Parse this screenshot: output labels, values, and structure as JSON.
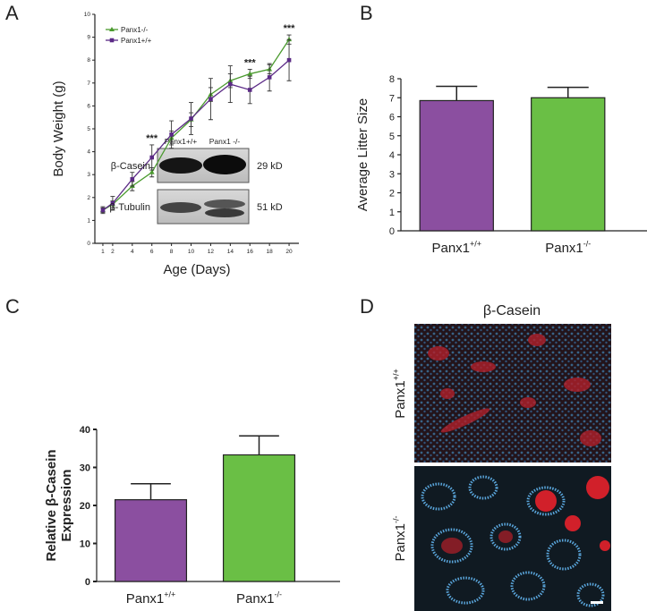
{
  "chart_data": [
    {
      "type": "line",
      "panel": "A",
      "xlabel": "Age (Days)",
      "ylabel": "Body Weight (g)",
      "x": [
        1,
        2,
        4,
        6,
        8,
        10,
        12,
        14,
        16,
        18,
        20
      ],
      "series": [
        {
          "name": "Panx1-/-",
          "color": "#4a9a2e",
          "marker": "triangle",
          "values": [
            1.45,
            1.7,
            2.5,
            3.1,
            4.6,
            5.4,
            6.5,
            7.1,
            7.4,
            7.6,
            8.9
          ],
          "errors": [
            0.1,
            0.15,
            0.2,
            0.2,
            0.3,
            0.3,
            0.3,
            0.3,
            0.2,
            0.2,
            0.2
          ]
        },
        {
          "name": "Panx1+/+",
          "color": "#5b2a86",
          "marker": "square",
          "values": [
            1.45,
            1.75,
            2.8,
            3.75,
            4.75,
            5.45,
            6.3,
            6.95,
            6.7,
            7.25,
            8.0
          ],
          "errors": [
            0.15,
            0.3,
            0.3,
            0.55,
            0.6,
            0.7,
            0.9,
            0.8,
            0.6,
            0.6,
            0.9
          ]
        }
      ],
      "annotations": [
        {
          "text": "***",
          "x": 6
        },
        {
          "text": "***",
          "x": 16
        },
        {
          "text": "***",
          "x": 20
        }
      ],
      "xlim": [
        0,
        21
      ],
      "xticks": [
        1,
        2,
        4,
        6,
        8,
        10,
        12,
        14,
        16,
        18,
        20
      ],
      "ylim": [
        0,
        10
      ],
      "yticks": [
        0,
        1,
        2,
        3,
        4,
        5,
        6,
        7,
        8,
        9,
        10
      ]
    },
    {
      "type": "bar",
      "panel": "B",
      "ylabel": "Average Litter Size",
      "categories": [
        {
          "text": "Panx1",
          "sup": "+/+"
        },
        {
          "text": "Panx1",
          "sup": "-/-"
        }
      ],
      "values": [
        6.85,
        7.0
      ],
      "errors": [
        0.75,
        0.55
      ],
      "colors": [
        "#8b4fa0",
        "#6abf45"
      ],
      "ylim": [
        0,
        8
      ],
      "yticks": [
        0,
        1,
        2,
        3,
        4,
        5,
        6,
        7,
        8
      ]
    },
    {
      "type": "bar",
      "panel": "C",
      "ylabel": [
        "Relative β-Casein",
        "Expression"
      ],
      "categories": [
        {
          "text": "Panx1",
          "sup": "+/+"
        },
        {
          "text": "Panx1",
          "sup": "-/-"
        }
      ],
      "values": [
        21.5,
        33.3
      ],
      "errors": [
        4.2,
        5.0
      ],
      "colors": [
        "#8b4fa0",
        "#6abf45"
      ],
      "ylim": [
        0,
        40
      ],
      "yticks": [
        0,
        10,
        20,
        30,
        40
      ]
    }
  ],
  "blot": {
    "lanes": [
      "Panx1+/+",
      "Panx1 -/-"
    ],
    "rows": [
      {
        "protein": "β-Casein",
        "size": "29 kD"
      },
      {
        "protein": "β-Tubulin",
        "size": "51 kD"
      }
    ]
  },
  "image_panel": {
    "panel": "D",
    "title": "β-Casein",
    "rows": [
      {
        "text": "Panx1",
        "sup": "+/+"
      },
      {
        "text": "Panx1",
        "sup": "-/-"
      }
    ]
  }
}
